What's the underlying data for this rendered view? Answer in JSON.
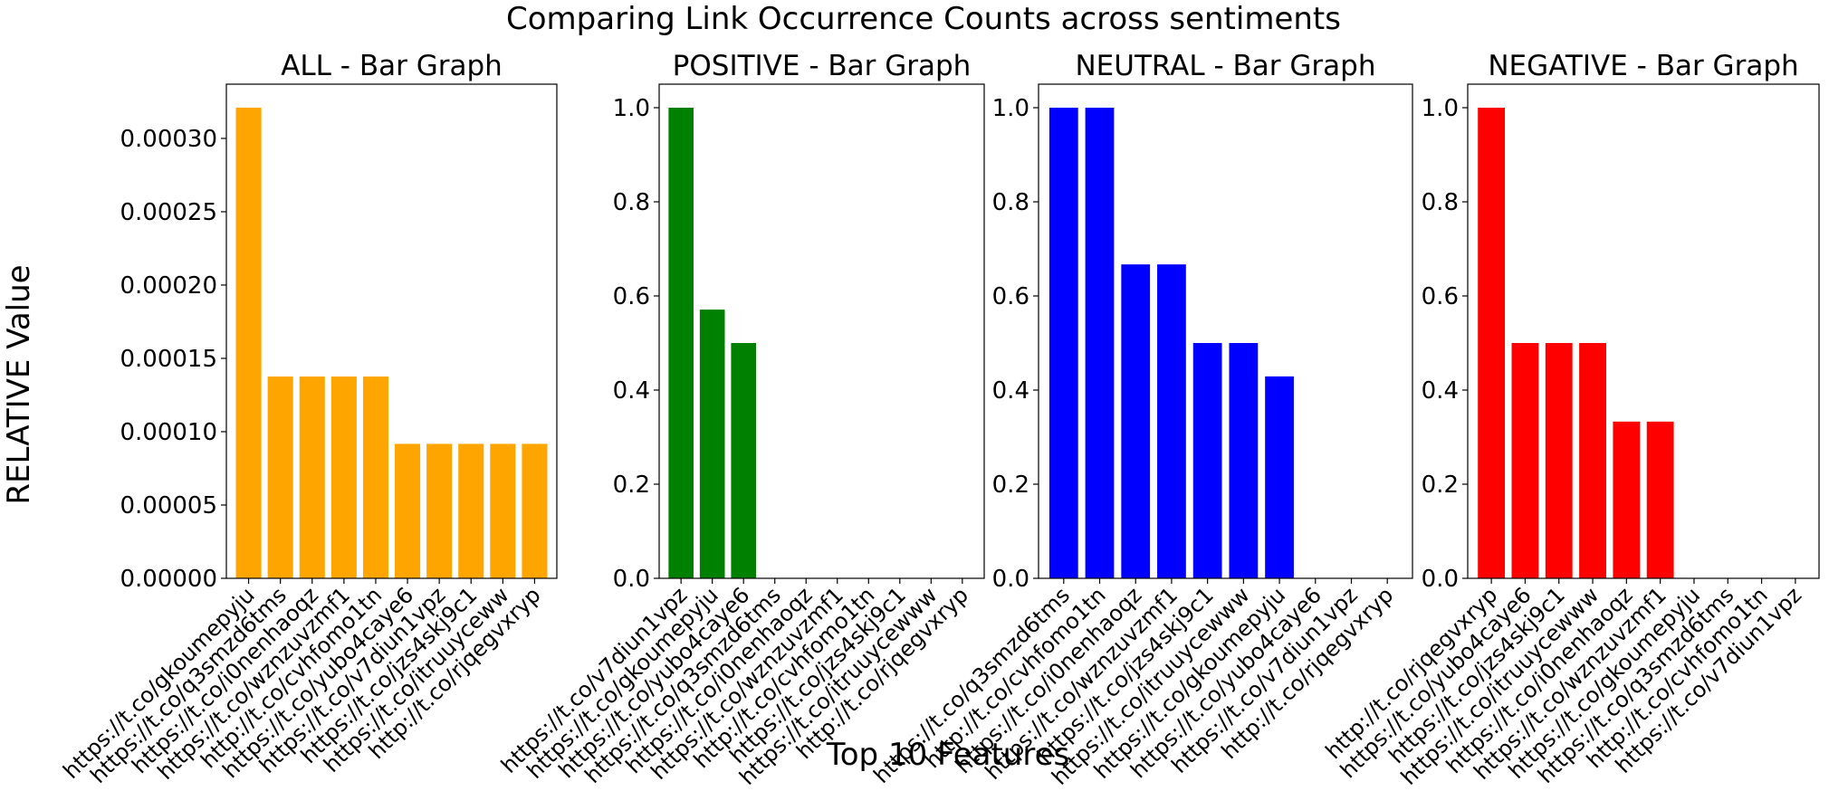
{
  "figure": {
    "title": "Comparing Link Occurrence Counts across sentiments",
    "xlabel": "Top 10 Features",
    "ylabel": "RELATIVE Value"
  },
  "chart_data": [
    {
      "type": "bar",
      "title": "ALL - Bar Graph",
      "color": "#FFA500",
      "categories": [
        "https://t.co/gkoumepyju",
        "https://t.co/q3smzd6tms",
        "https://t.co/i0nenhaoqz",
        "https://t.co/wznzuvzmf1",
        "http://t.co/cvhfomo1tn",
        "https://t.co/yubo4caye6",
        "https://t.co/v7diun1vpz",
        "https://t.co/jzs4skj9c1",
        "https://t.co/itruuyceww",
        "http://t.co/rjqegvxryp"
      ],
      "values": [
        0.000321,
        0.0001376,
        0.0001376,
        0.0001376,
        0.0001376,
        9.17e-05,
        9.17e-05,
        9.17e-05,
        9.17e-05,
        9.17e-05
      ],
      "ylim": [
        0,
        0.000337
      ],
      "yticks": [
        0,
        5e-05,
        0.0001,
        0.00015,
        0.0002,
        0.00025,
        0.0003
      ],
      "ytick_labels": [
        "0.00000",
        "0.00005",
        "0.00010",
        "0.00015",
        "0.00020",
        "0.00025",
        "0.00030"
      ]
    },
    {
      "type": "bar",
      "title": "POSITIVE - Bar Graph",
      "color": "#008000",
      "categories": [
        "https://t.co/v7diun1vpz",
        "https://t.co/gkoumepyju",
        "https://t.co/yubo4caye6",
        "https://t.co/q3smzd6tms",
        "https://t.co/i0nenhaoqz",
        "https://t.co/wznzuvzmf1",
        "http://t.co/cvhfomo1tn",
        "https://t.co/jzs4skj9c1",
        "https://t.co/itruuycewww",
        "http://t.co/rjqegvxryp"
      ],
      "values": [
        1.0,
        0.571,
        0.5,
        0,
        0,
        0,
        0,
        0,
        0,
        0
      ],
      "ylim": [
        0,
        1.05
      ],
      "yticks": [
        0,
        0.2,
        0.4,
        0.6,
        0.8,
        1.0
      ],
      "ytick_labels": [
        "0.0",
        "0.2",
        "0.4",
        "0.6",
        "0.8",
        "1.0"
      ]
    },
    {
      "type": "bar",
      "title": "NEUTRAL - Bar Graph",
      "color": "#0000FF",
      "categories": [
        "https://t.co/q3smzd6tms",
        "http://t.co/cvhfomo1tn",
        "https://t.co/i0nenhaoqz",
        "https://t.co/wznzuvzmf1",
        "https://t.co/jzs4skj9c1",
        "https://t.co/itruuycewww",
        "https://t.co/gkoumepyju",
        "https://t.co/yubo4caye6",
        "https://t.co/v7diun1vpz",
        "http://t.co/rjqegvxryp"
      ],
      "values": [
        1.0,
        1.0,
        0.667,
        0.667,
        0.5,
        0.5,
        0.429,
        0,
        0,
        0
      ],
      "ylim": [
        0,
        1.05
      ],
      "yticks": [
        0,
        0.2,
        0.4,
        0.6,
        0.8,
        1.0
      ],
      "ytick_labels": [
        "0.0",
        "0.2",
        "0.4",
        "0.6",
        "0.8",
        "1.0"
      ]
    },
    {
      "type": "bar",
      "title": "NEGATIVE - Bar Graph",
      "color": "#FF0000",
      "categories": [
        "http://t.co/rjqegvxryp",
        "https://t.co/yubo4caye6",
        "https://t.co/jzs4skj9c1",
        "https://t.co/itruuycewww",
        "https://t.co/i0nenhaoqz",
        "https://t.co/wznzuvzmf1",
        "https://t.co/gkoumepyju",
        "https://t.co/q3smzd6tms",
        "http://t.co/cvhfomo1tn",
        "https://t.co/v7diun1vpz"
      ],
      "values": [
        1.0,
        0.5,
        0.5,
        0.5,
        0.333,
        0.333,
        0,
        0,
        0,
        0
      ],
      "ylim": [
        0,
        1.05
      ],
      "yticks": [
        0,
        0.2,
        0.4,
        0.6,
        0.8,
        1.0
      ],
      "ytick_labels": [
        "0.0",
        "0.2",
        "0.4",
        "0.6",
        "0.8",
        "1.0"
      ]
    }
  ]
}
